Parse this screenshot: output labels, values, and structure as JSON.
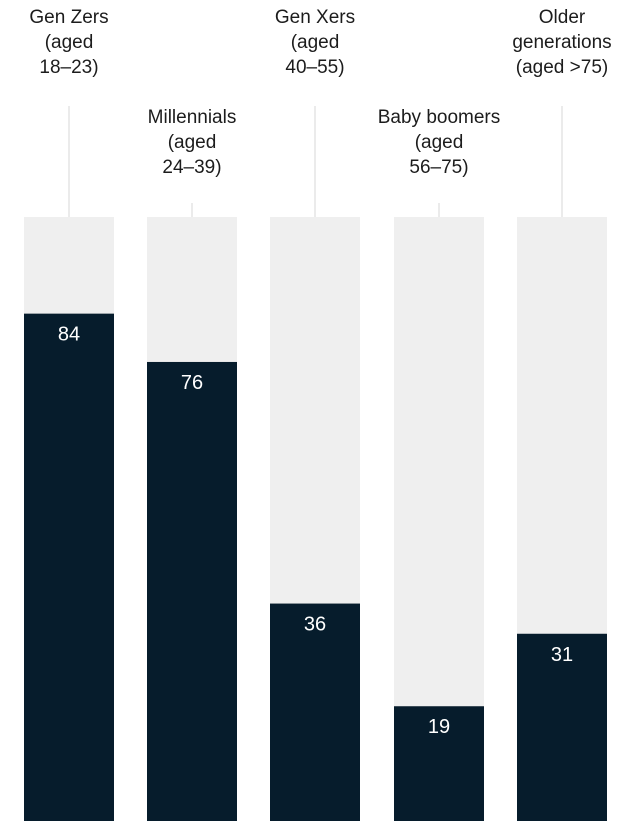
{
  "chart_data": {
    "type": "bar",
    "categories": [
      [
        "Gen Zers",
        "(aged",
        "18–23)"
      ],
      [
        "Millennials",
        "(aged",
        "24–39)"
      ],
      [
        "Gen Xers",
        "(aged",
        "40–55)"
      ],
      [
        "Baby boomers",
        "(aged",
        "56–75)"
      ],
      [
        "Older",
        "generations",
        "(aged >75)"
      ]
    ],
    "values": [
      84,
      76,
      36,
      19,
      31
    ],
    "ylim": [
      0,
      100
    ],
    "title": "",
    "xlabel": "",
    "ylabel": "",
    "grid": false,
    "legend": "none",
    "colors": {
      "bar": "#061c2c",
      "background_bar": "#efefef",
      "value_text": "#ffffff"
    }
  }
}
